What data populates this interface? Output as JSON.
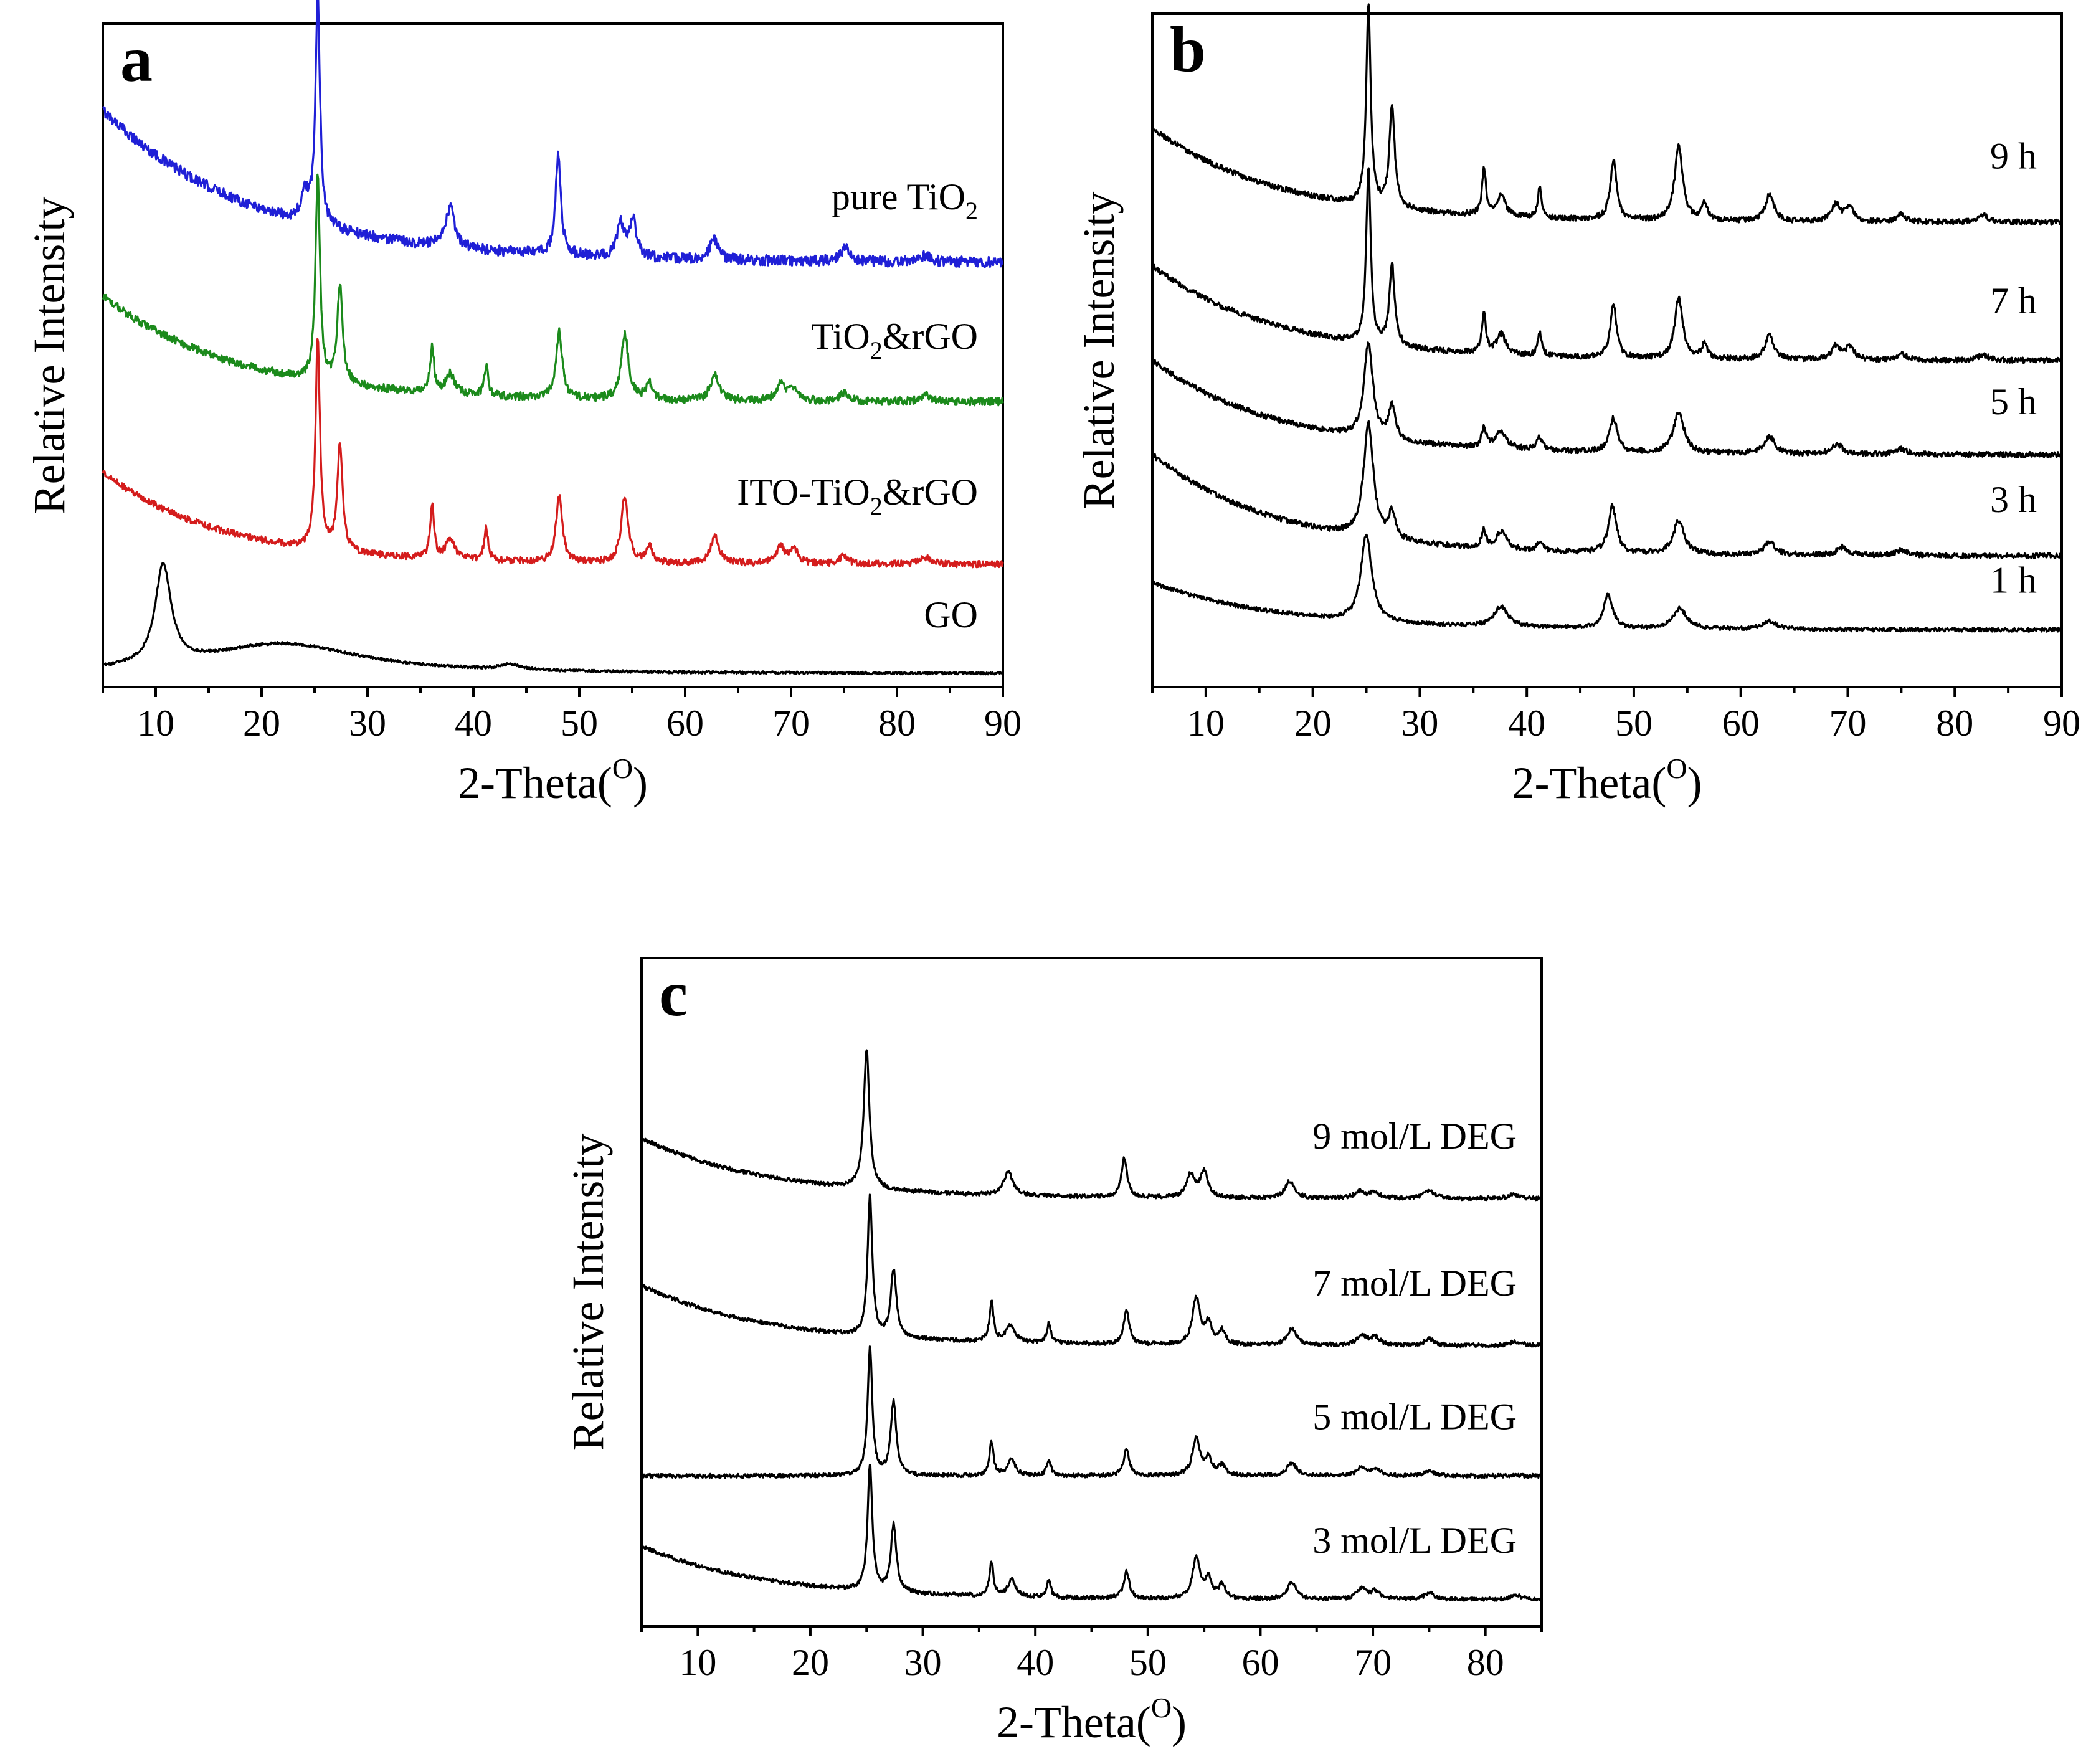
{
  "chart_data": [
    {
      "panel_label": "a",
      "type": "line",
      "xlabel_main": "2-Theta(",
      "xlabel_sup": "O",
      "xlabel_end": ")",
      "ylabel": "Relative Intensity",
      "xlim": [
        5,
        90
      ],
      "ylim": [
        0,
        1
      ],
      "xticks": [
        10,
        20,
        30,
        40,
        50,
        60,
        70,
        80,
        90
      ],
      "y_ticks_shown": false,
      "legend": "inline labels at right",
      "series": [
        {
          "key": "pure",
          "label_pre": "pure TiO",
          "label_sub": "2",
          "label_post": "",
          "color": "#1f1fd6",
          "baseline": 0.64,
          "drop": 0.23,
          "decay": 0.07,
          "noise": 0.008,
          "label_y": 0.72,
          "peaks": [
            [
              24.1,
              0.04,
              0.45
            ],
            [
              25.3,
              0.34,
              0.26
            ],
            [
              37.8,
              0.06,
              0.5
            ],
            [
              48.0,
              0.15,
              0.3
            ],
            [
              53.9,
              0.05,
              0.4
            ],
            [
              55.1,
              0.055,
              0.4
            ],
            [
              62.7,
              0.03,
              0.5
            ],
            [
              75.1,
              0.02,
              0.5
            ],
            [
              82.7,
              0.01,
              0.5
            ]
          ]
        },
        {
          "key": "tio2rgo",
          "label_pre": "TiO",
          "label_sub": "2",
          "label_post": "&rGO",
          "color": "#1b8a1b",
          "baseline": 0.43,
          "drop": 0.16,
          "decay": 0.08,
          "noise": 0.006,
          "label_y": 0.51,
          "peaks": [
            [
              25.3,
              0.31,
              0.25
            ],
            [
              27.4,
              0.15,
              0.3
            ],
            [
              36.1,
              0.07,
              0.22
            ],
            [
              37.8,
              0.03,
              0.5
            ],
            [
              41.2,
              0.045,
              0.22
            ],
            [
              48.1,
              0.1,
              0.35
            ],
            [
              54.3,
              0.1,
              0.4
            ],
            [
              56.6,
              0.025,
              0.35
            ],
            [
              62.8,
              0.04,
              0.5
            ],
            [
              69.0,
              0.025,
              0.5
            ],
            [
              70.3,
              0.02,
              0.5
            ],
            [
              75.0,
              0.012,
              0.5
            ],
            [
              82.7,
              0.01,
              0.6
            ]
          ]
        },
        {
          "key": "ito",
          "label_pre": "ITO-TiO",
          "label_sub": "2",
          "label_post": "&rGO",
          "color": "#d41c1c",
          "baseline": 0.185,
          "drop": 0.14,
          "decay": 0.09,
          "noise": 0.005,
          "label_y": 0.275,
          "peaks": [
            [
              25.3,
              0.32,
              0.25
            ],
            [
              27.4,
              0.16,
              0.3
            ],
            [
              36.1,
              0.08,
              0.22
            ],
            [
              37.8,
              0.03,
              0.5
            ],
            [
              41.2,
              0.05,
              0.22
            ],
            [
              48.1,
              0.1,
              0.35
            ],
            [
              54.3,
              0.1,
              0.4
            ],
            [
              56.6,
              0.025,
              0.35
            ],
            [
              62.8,
              0.04,
              0.5
            ],
            [
              69.0,
              0.025,
              0.5
            ],
            [
              70.3,
              0.02,
              0.5
            ],
            [
              75.0,
              0.012,
              0.5
            ],
            [
              82.7,
              0.01,
              0.6
            ]
          ]
        },
        {
          "key": "go",
          "label_pre": "GO",
          "label_sub": "",
          "label_post": "",
          "color": "#000000",
          "baseline": 0.02,
          "drop": 0.0,
          "decay": 0.05,
          "noise": 0.002,
          "label_y": 0.09,
          "peaks": [
            [
              10.7,
              0.15,
              0.9
            ],
            [
              22.0,
              0.045,
              9.0
            ],
            [
              43.5,
              0.008,
              1.2
            ]
          ]
        }
      ]
    },
    {
      "panel_label": "b",
      "type": "line",
      "xlabel_main": "2-Theta(",
      "xlabel_sup": "O",
      "xlabel_end": ")",
      "ylabel": "Relative Intensity",
      "xlim": [
        5,
        90
      ],
      "ylim": [
        0,
        1
      ],
      "xticks": [
        10,
        20,
        30,
        40,
        50,
        60,
        70,
        80,
        90
      ],
      "y_ticks_shown": false,
      "legend": "inline labels at right",
      "series": [
        {
          "key": "9h",
          "label_pre": "9 h",
          "label_sub": "",
          "label_post": "",
          "color": "#000000",
          "baseline": 0.69,
          "drop": 0.14,
          "decay": 0.085,
          "noise": 0.004,
          "label_y": 0.77,
          "peaks": [
            [
              25.2,
              0.3,
              0.25
            ],
            [
              27.4,
              0.15,
              0.3
            ],
            [
              36.0,
              0.07,
              0.22
            ],
            [
              37.6,
              0.03,
              0.5
            ],
            [
              41.2,
              0.045,
              0.22
            ],
            [
              48.1,
              0.09,
              0.35
            ],
            [
              54.2,
              0.11,
              0.45
            ],
            [
              56.6,
              0.025,
              0.35
            ],
            [
              62.7,
              0.04,
              0.5
            ],
            [
              68.9,
              0.025,
              0.5
            ],
            [
              70.2,
              0.02,
              0.5
            ],
            [
              75.0,
              0.012,
              0.5
            ],
            [
              82.7,
              0.01,
              0.6
            ]
          ]
        },
        {
          "key": "7h",
          "label_pre": "7 h",
          "label_sub": "",
          "label_post": "",
          "color": "#000000",
          "baseline": 0.485,
          "drop": 0.14,
          "decay": 0.085,
          "noise": 0.004,
          "label_y": 0.555,
          "peaks": [
            [
              25.2,
              0.26,
              0.25
            ],
            [
              27.4,
              0.12,
              0.3
            ],
            [
              36.0,
              0.06,
              0.22
            ],
            [
              37.6,
              0.03,
              0.5
            ],
            [
              41.2,
              0.035,
              0.22
            ],
            [
              48.1,
              0.08,
              0.35
            ],
            [
              54.2,
              0.09,
              0.45
            ],
            [
              56.6,
              0.02,
              0.35
            ],
            [
              62.7,
              0.035,
              0.5
            ],
            [
              68.9,
              0.02,
              0.5
            ],
            [
              70.2,
              0.018,
              0.5
            ],
            [
              75.0,
              0.01,
              0.5
            ],
            [
              82.7,
              0.008,
              0.6
            ]
          ]
        },
        {
          "key": "5h",
          "label_pre": "5 h",
          "label_sub": "",
          "label_post": "",
          "color": "#000000",
          "baseline": 0.345,
          "drop": 0.14,
          "decay": 0.085,
          "noise": 0.004,
          "label_y": 0.405,
          "peaks": [
            [
              25.2,
              0.14,
              0.5
            ],
            [
              27.4,
              0.05,
              0.35
            ],
            [
              36.0,
              0.03,
              0.25
            ],
            [
              37.6,
              0.025,
              0.6
            ],
            [
              41.2,
              0.02,
              0.3
            ],
            [
              48.1,
              0.05,
              0.45
            ],
            [
              54.2,
              0.06,
              0.6
            ],
            [
              62.7,
              0.025,
              0.6
            ],
            [
              69.0,
              0.015,
              0.6
            ],
            [
              75.0,
              0.008,
              0.6
            ]
          ]
        },
        {
          "key": "3h",
          "label_pre": "3 h",
          "label_sub": "",
          "label_post": "",
          "color": "#000000",
          "baseline": 0.195,
          "drop": 0.15,
          "decay": 0.085,
          "noise": 0.004,
          "label_y": 0.26,
          "peaks": [
            [
              25.2,
              0.17,
              0.55
            ],
            [
              27.4,
              0.04,
              0.35
            ],
            [
              36.0,
              0.025,
              0.25
            ],
            [
              37.6,
              0.025,
              0.6
            ],
            [
              41.2,
              0.015,
              0.3
            ],
            [
              48.0,
              0.07,
              0.45
            ],
            [
              54.2,
              0.05,
              0.6
            ],
            [
              62.7,
              0.02,
              0.6
            ],
            [
              69.5,
              0.012,
              0.6
            ],
            [
              75.0,
              0.008,
              0.6
            ]
          ]
        },
        {
          "key": "1h",
          "label_pre": "1 h",
          "label_sub": "",
          "label_post": "",
          "color": "#000000",
          "baseline": 0.085,
          "drop": 0.07,
          "decay": 0.085,
          "noise": 0.003,
          "label_y": 0.14,
          "peaks": [
            [
              25.0,
              0.13,
              0.6
            ],
            [
              37.6,
              0.03,
              0.8
            ],
            [
              47.6,
              0.05,
              0.5
            ],
            [
              54.3,
              0.03,
              0.8
            ],
            [
              62.7,
              0.012,
              0.8
            ]
          ]
        }
      ]
    },
    {
      "panel_label": "c",
      "type": "line",
      "xlabel_main": "2-Theta(",
      "xlabel_sup": "O",
      "xlabel_end": ")",
      "ylabel": "Relative Intensity",
      "xlim": [
        5,
        85
      ],
      "ylim": [
        0,
        1
      ],
      "xticks": [
        10,
        20,
        30,
        40,
        50,
        60,
        70,
        80
      ],
      "y_ticks_shown": false,
      "legend": "inline labels at right",
      "series": [
        {
          "key": "9mol",
          "label_pre": "9 mol/L DEG",
          "label_sub": "",
          "label_post": "",
          "color": "#000000",
          "baseline": 0.64,
          "drop": 0.09,
          "decay": 0.09,
          "noise": 0.003,
          "label_y": 0.715,
          "peaks": [
            [
              25.0,
              0.21,
              0.3
            ],
            [
              37.6,
              0.035,
              0.5
            ],
            [
              47.9,
              0.06,
              0.3
            ],
            [
              53.8,
              0.035,
              0.4
            ],
            [
              55.0,
              0.04,
              0.4
            ],
            [
              62.6,
              0.025,
              0.5
            ],
            [
              68.8,
              0.01,
              0.5
            ],
            [
              70.1,
              0.01,
              0.5
            ],
            [
              75.0,
              0.012,
              0.5
            ],
            [
              82.5,
              0.006,
              0.6
            ]
          ]
        },
        {
          "key": "7mol",
          "label_pre": "7 mol/L DEG",
          "label_sub": "",
          "label_post": "",
          "color": "#000000",
          "baseline": 0.42,
          "drop": 0.09,
          "decay": 0.09,
          "noise": 0.003,
          "label_y": 0.495,
          "peaks": [
            [
              25.3,
              0.21,
              0.25
            ],
            [
              27.4,
              0.1,
              0.3
            ],
            [
              36.1,
              0.06,
              0.22
            ],
            [
              37.8,
              0.025,
              0.5
            ],
            [
              41.2,
              0.03,
              0.22
            ],
            [
              48.1,
              0.05,
              0.3
            ],
            [
              54.3,
              0.07,
              0.4
            ],
            [
              55.4,
              0.03,
              0.35
            ],
            [
              56.6,
              0.02,
              0.35
            ],
            [
              62.8,
              0.025,
              0.5
            ],
            [
              69.0,
              0.015,
              0.5
            ],
            [
              70.2,
              0.012,
              0.5
            ],
            [
              75.0,
              0.01,
              0.5
            ],
            [
              82.7,
              0.006,
              0.6
            ]
          ]
        },
        {
          "key": "5mol",
          "label_pre": "5 mol/L DEG",
          "label_sub": "",
          "label_post": "",
          "color": "#000000",
          "baseline": 0.225,
          "drop": 0.0,
          "decay": 0.09,
          "noise": 0.003,
          "label_y": 0.295,
          "peaks": [
            [
              25.3,
              0.19,
              0.25
            ],
            [
              27.4,
              0.11,
              0.3
            ],
            [
              36.1,
              0.05,
              0.22
            ],
            [
              37.9,
              0.025,
              0.4
            ],
            [
              41.2,
              0.025,
              0.22
            ],
            [
              48.1,
              0.04,
              0.3
            ],
            [
              54.3,
              0.055,
              0.4
            ],
            [
              55.4,
              0.025,
              0.35
            ],
            [
              56.6,
              0.015,
              0.35
            ],
            [
              62.8,
              0.02,
              0.5
            ],
            [
              69.0,
              0.012,
              0.5
            ],
            [
              70.2,
              0.01,
              0.5
            ],
            [
              75.0,
              0.008,
              0.5
            ]
          ]
        },
        {
          "key": "3mol",
          "label_pre": "3 mol/L DEG",
          "label_sub": "",
          "label_post": "",
          "color": "#000000",
          "baseline": 0.04,
          "drop": 0.08,
          "decay": 0.09,
          "noise": 0.003,
          "label_y": 0.11,
          "peaks": [
            [
              25.3,
              0.19,
              0.25
            ],
            [
              27.4,
              0.1,
              0.3
            ],
            [
              36.1,
              0.05,
              0.22
            ],
            [
              37.9,
              0.025,
              0.4
            ],
            [
              41.2,
              0.025,
              0.22
            ],
            [
              48.1,
              0.04,
              0.3
            ],
            [
              54.3,
              0.06,
              0.4
            ],
            [
              55.4,
              0.03,
              0.35
            ],
            [
              56.6,
              0.02,
              0.35
            ],
            [
              62.8,
              0.025,
              0.5
            ],
            [
              69.0,
              0.015,
              0.5
            ],
            [
              70.2,
              0.012,
              0.5
            ],
            [
              75.0,
              0.01,
              0.5
            ],
            [
              82.7,
              0.006,
              0.6
            ]
          ]
        }
      ]
    }
  ]
}
